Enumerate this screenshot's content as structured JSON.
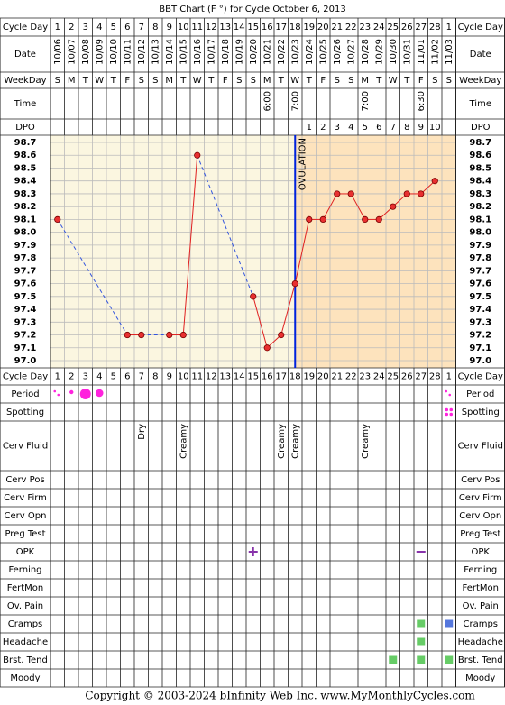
{
  "title": "BBT Chart (F °) for Cycle October 6, 2013",
  "row_labels": {
    "cycle_day": "Cycle Day",
    "date": "Date",
    "weekday": "WeekDay",
    "time": "Time",
    "dpo": "DPO",
    "period": "Period",
    "spotting": "Spotting",
    "cerv_fluid": "Cerv Fluid",
    "cerv_pos": "Cerv Pos",
    "cerv_firm": "Cerv Firm",
    "cerv_opn": "Cerv Opn",
    "preg_test": "Preg Test",
    "opk": "OPK",
    "ferning": "Ferning",
    "fertmon": "FertMon",
    "ov_pain": "Ov. Pain",
    "cramps": "Cramps",
    "headache": "Headache",
    "brst_tend": "Brst. Tend",
    "moody": "Moody"
  },
  "cycle_days": [
    1,
    2,
    3,
    4,
    5,
    6,
    7,
    8,
    9,
    10,
    11,
    12,
    13,
    14,
    15,
    16,
    17,
    18,
    19,
    20,
    21,
    22,
    23,
    24,
    25,
    26,
    27,
    28,
    1
  ],
  "dates": [
    "10/06",
    "10/07",
    "10/08",
    "10/09",
    "10/10",
    "10/11",
    "10/12",
    "10/13",
    "10/14",
    "10/15",
    "10/16",
    "10/17",
    "10/18",
    "10/19",
    "10/20",
    "10/21",
    "10/22",
    "10/23",
    "10/24",
    "10/25",
    "10/26",
    "10/27",
    "10/28",
    "10/29",
    "10/30",
    "10/31",
    "11/01",
    "11/02",
    "11/03"
  ],
  "weekdays": [
    "S",
    "M",
    "T",
    "W",
    "T",
    "F",
    "S",
    "S",
    "M",
    "T",
    "W",
    "T",
    "F",
    "S",
    "S",
    "M",
    "T",
    "W",
    "T",
    "F",
    "S",
    "S",
    "M",
    "T",
    "W",
    "T",
    "F",
    "S",
    "S"
  ],
  "times": [
    null,
    null,
    null,
    null,
    null,
    null,
    null,
    null,
    null,
    null,
    null,
    null,
    null,
    null,
    null,
    "6:00",
    null,
    "7:00",
    null,
    null,
    null,
    null,
    "7:00",
    null,
    null,
    null,
    "6:30",
    null,
    null
  ],
  "dpo": [
    null,
    null,
    null,
    null,
    null,
    null,
    null,
    null,
    null,
    null,
    null,
    null,
    null,
    null,
    null,
    null,
    null,
    null,
    1,
    2,
    3,
    4,
    5,
    6,
    7,
    8,
    9,
    10,
    null
  ],
  "cerv_fluid": [
    null,
    null,
    null,
    null,
    null,
    null,
    "Dry",
    null,
    null,
    "Creamy",
    null,
    null,
    null,
    null,
    null,
    null,
    "Creamy",
    "Creamy",
    null,
    null,
    null,
    null,
    "Creamy",
    null,
    null,
    null,
    null,
    null,
    null
  ],
  "chart_data": {
    "type": "line",
    "ovulation_label": "OVULATION",
    "values": [
      98.1,
      null,
      null,
      null,
      null,
      97.2,
      97.2,
      null,
      97.2,
      97.2,
      98.6,
      null,
      null,
      null,
      97.5,
      97.1,
      97.2,
      97.6,
      98.1,
      98.1,
      98.3,
      98.3,
      98.1,
      98.1,
      98.2,
      98.3,
      98.3,
      98.4,
      null
    ],
    "color": "#e02020",
    "gap_color": "#3355dd",
    "ylim": [
      97.0,
      98.7
    ],
    "yticks": [
      98.7,
      98.6,
      98.5,
      98.4,
      98.3,
      98.2,
      98.1,
      {
        "value": 98.0,
        "label": "98.0"
      },
      97.9,
      97.8,
      97.7,
      97.6,
      97.5,
      97.4,
      97.3,
      97.2,
      97.1,
      {
        "value": 97.0,
        "label": "97.0"
      }
    ]
  },
  "footer": {
    "copyright": "Copyright © 2003-2024 bInfinity Web Inc.",
    "site": "www.MyMonthlyCycles.com"
  }
}
